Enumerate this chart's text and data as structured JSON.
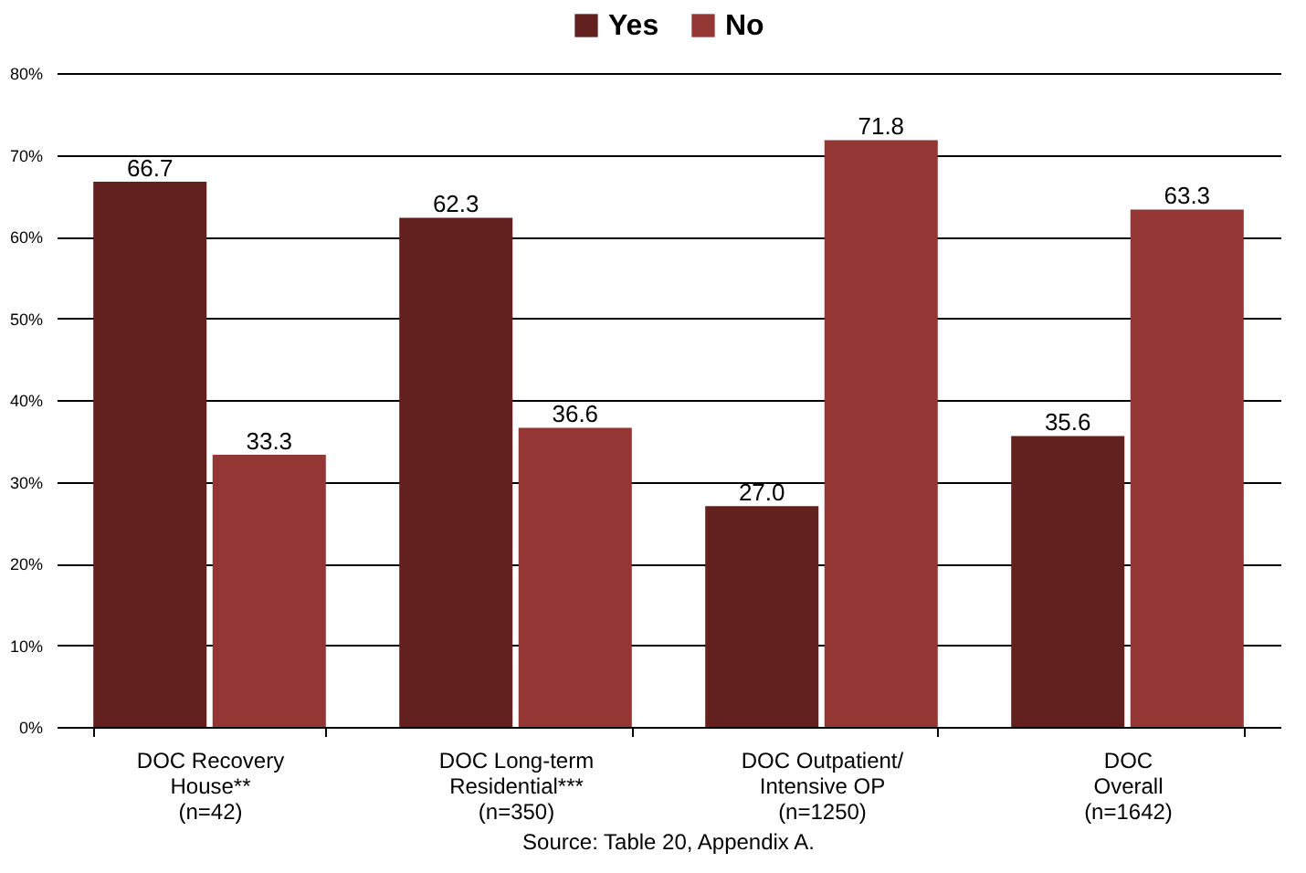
{
  "chart_data": {
    "type": "bar",
    "categories": [
      "DOC Recovery\nHouse**\n(n=42)",
      "DOC Long-term\nResidential***\n(n=350)",
      "DOC Outpatient/\nIntensive OP\n(n=1250)",
      "DOC\nOverall\n(n=1642)"
    ],
    "series": [
      {
        "name": "Yes",
        "color": "#62201f",
        "values": [
          66.7,
          62.3,
          27.0,
          35.6
        ]
      },
      {
        "name": "No",
        "color": "#943634",
        "values": [
          33.3,
          36.6,
          71.8,
          63.3
        ]
      }
    ],
    "value_labels": [
      [
        "66.7",
        "62.3",
        "27.0",
        "35.6"
      ],
      [
        "33.3",
        "36.6",
        "71.8",
        "63.3"
      ]
    ],
    "ylim": [
      0,
      80
    ],
    "yticks": [
      {
        "value": 0,
        "label": "0%"
      },
      {
        "value": 10,
        "label": "10%"
      },
      {
        "value": 20,
        "label": "20%"
      },
      {
        "value": 30,
        "label": "30%"
      },
      {
        "value": 40,
        "label": "40%"
      },
      {
        "value": 50,
        "label": "50%"
      },
      {
        "value": 60,
        "label": "60%"
      },
      {
        "value": 70,
        "label": "70%"
      },
      {
        "value": 80,
        "label": "80%"
      }
    ],
    "grid": "y",
    "legend": "top",
    "annotations": [
      "Source: Table 20, Appendix A."
    ]
  }
}
